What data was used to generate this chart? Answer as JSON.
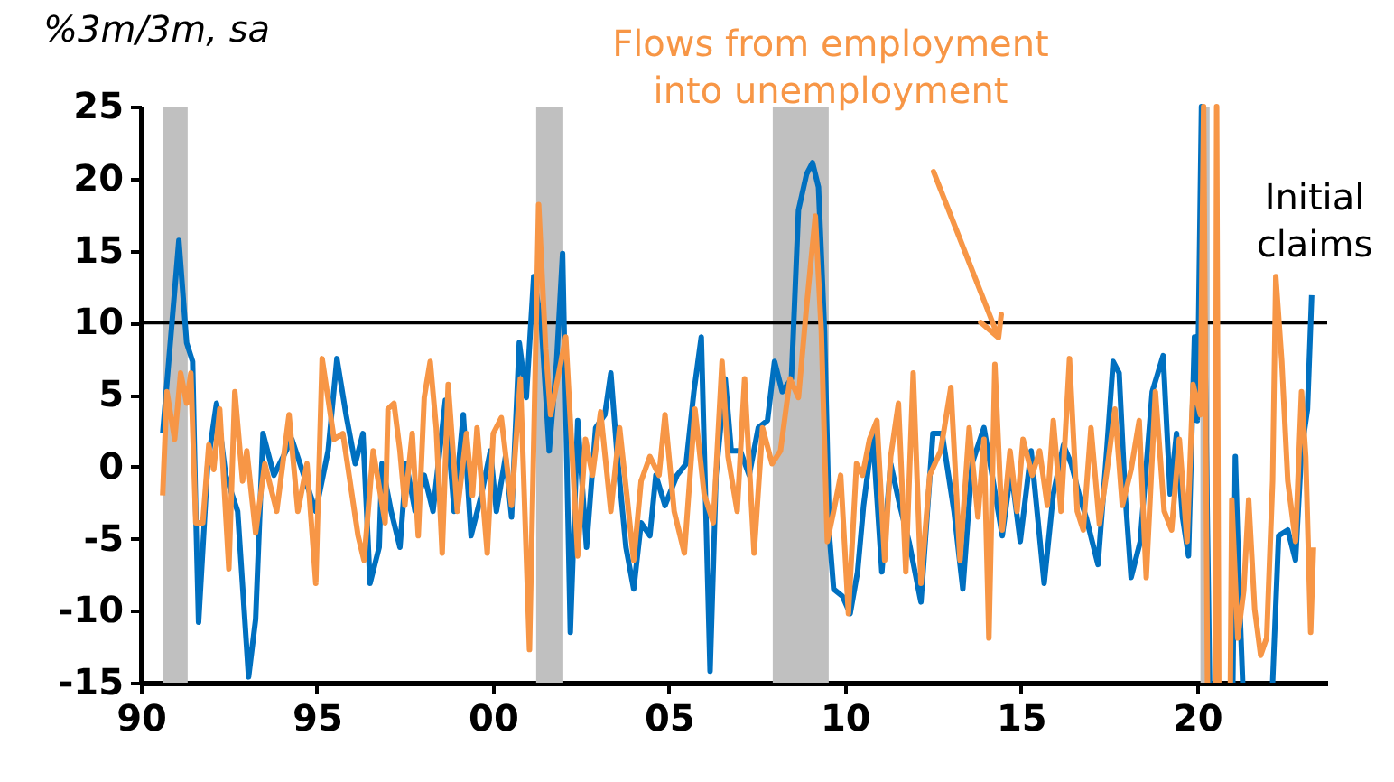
{
  "chart_data": {
    "type": "line",
    "ylabel": "%3m/3m, sa",
    "xlim": [
      1990,
      2023.7
    ],
    "xticks": [
      {
        "value": 1990,
        "label": "90"
      },
      {
        "value": 1995,
        "label": "95"
      },
      {
        "value": 2000,
        "label": "00"
      },
      {
        "value": 2005,
        "label": "05"
      },
      {
        "value": 2010,
        "label": "10"
      },
      {
        "value": 2015,
        "label": "15"
      },
      {
        "value": 2020,
        "label": "20"
      }
    ],
    "ylim": [
      -15,
      25
    ],
    "yticks": [
      -15,
      -10,
      -5,
      0,
      5,
      10,
      15,
      20,
      25
    ],
    "grid": false,
    "legend": false,
    "series": [
      {
        "name": "Initial claims",
        "color": "#0070c0",
        "x": [
          1990.62,
          1991.08,
          1991.3,
          1991.47,
          1991.56,
          1991.64,
          1991.9,
          1992.15,
          1992.41,
          1992.75,
          1993.06,
          1993.26,
          1993.47,
          1993.78,
          1994.29,
          1994.97,
          1995.32,
          1995.57,
          1995.83,
          1996.09,
          1996.31,
          1996.51,
          1996.77,
          1996.85,
          1997.11,
          1997.36,
          1997.54,
          1997.79,
          1998.05,
          1998.3,
          1998.65,
          1998.9,
          1999.16,
          1999.38,
          1999.67,
          1999.93,
          2000.1,
          2000.36,
          2000.53,
          2000.75,
          2000.95,
          2001.16,
          2001.38,
          2001.6,
          2001.81,
          2001.98,
          2002.2,
          2002.41,
          2002.66,
          2002.92,
          2003.18,
          2003.35,
          2003.52,
          2003.78,
          2004.0,
          2004.21,
          2004.46,
          2004.63,
          2004.89,
          2005.23,
          2005.49,
          2005.71,
          2005.92,
          2006.05,
          2006.17,
          2006.34,
          2006.6,
          2006.77,
          2007.03,
          2007.28,
          2007.54,
          2007.8,
          2008.0,
          2008.22,
          2008.48,
          2008.68,
          2008.91,
          2009.08,
          2009.25,
          2009.42,
          2009.56,
          2009.68,
          2009.93,
          2010.15,
          2010.36,
          2010.53,
          2010.79,
          2011.05,
          2011.3,
          2011.56,
          2011.82,
          2012.16,
          2012.5,
          2012.76,
          2013.1,
          2013.35,
          2013.61,
          2013.95,
          2014.21,
          2014.47,
          2014.72,
          2014.98,
          2015.29,
          2015.66,
          2015.92,
          2016.21,
          2016.43,
          2016.69,
          2016.85,
          2017.19,
          2017.45,
          2017.62,
          2017.79,
          2017.96,
          2018.13,
          2018.39,
          2018.73,
          2019.04,
          2019.24,
          2019.42,
          2019.59,
          2019.76,
          2019.93,
          2020.01,
          2020.13,
          2020.36,
          2020.7,
          2021.02,
          2021.09,
          2021.21,
          2021.3,
          2021.7,
          2022.15,
          2022.32,
          2022.58,
          2022.8,
          2022.97,
          2023.14,
          2023.26
        ],
        "values": [
          2.3,
          15.7,
          8.6,
          7.3,
          -3.1,
          -10.8,
          0.2,
          4.4,
          -0.6,
          -3.1,
          -14.6,
          -10.6,
          2.3,
          -0.6,
          1.9,
          -3.1,
          1.1,
          7.5,
          3.6,
          0.2,
          2.3,
          -8.1,
          -5.6,
          0.2,
          -3.1,
          -5.6,
          0.2,
          -3.1,
          -0.6,
          -3.1,
          4.6,
          -3.1,
          3.6,
          -4.8,
          -2.0,
          1.1,
          -3.1,
          0.7,
          -3.5,
          8.6,
          4.8,
          13.2,
          9.8,
          1.1,
          7.3,
          14.8,
          -11.5,
          3.2,
          -5.6,
          2.7,
          3.6,
          6.5,
          1.1,
          -5.6,
          -8.5,
          -3.9,
          -4.8,
          -0.6,
          -2.7,
          -0.6,
          0.2,
          5.2,
          9.0,
          -3.1,
          -14.2,
          -0.6,
          6.1,
          1.1,
          1.1,
          -0.6,
          2.7,
          3.2,
          7.3,
          5.2,
          6.1,
          17.8,
          20.3,
          21.1,
          19.4,
          9.4,
          -4.8,
          -8.5,
          -9.0,
          -10.2,
          -7.3,
          -2.7,
          2.3,
          -7.3,
          0.2,
          -2.7,
          -5.2,
          -9.4,
          2.3,
          2.3,
          -3.1,
          -8.5,
          0.2,
          2.7,
          -1.0,
          -4.8,
          -0.2,
          -5.2,
          1.1,
          -8.1,
          -1.9,
          1.5,
          0.2,
          -2.3,
          -3.5,
          -6.8,
          1.5,
          7.3,
          6.5,
          -1.9,
          -7.7,
          -5.2,
          5.2,
          7.7,
          -1.9,
          2.3,
          -3.5,
          -6.2,
          9.0,
          3.2,
          25,
          -15,
          null,
          -15,
          0.7,
          -9.3,
          -15,
          null,
          -15,
          -4.8,
          -4.4,
          -6.5,
          1.1,
          4.0,
          11.9
        ]
      },
      {
        "name": "Flows from employment into unemployment",
        "color": "#f79646",
        "x": [
          1990.62,
          1990.74,
          1990.96,
          1991.13,
          1991.3,
          1991.42,
          1991.56,
          1991.76,
          1991.93,
          1992.07,
          1992.24,
          1992.5,
          1992.67,
          1992.89,
          1993.01,
          1993.26,
          1993.52,
          1993.86,
          1994.21,
          1994.46,
          1994.72,
          1994.97,
          1995.15,
          1995.49,
          1995.74,
          1996.17,
          1996.34,
          1996.6,
          1996.94,
          1997.02,
          1997.19,
          1997.36,
          1997.5,
          1997.71,
          1997.88,
          1998.05,
          1998.22,
          1998.39,
          1998.56,
          1998.73,
          1998.99,
          1999.25,
          1999.42,
          1999.55,
          1999.84,
          2000.01,
          2000.24,
          2000.53,
          2000.78,
          2001.04,
          2001.3,
          2001.5,
          2001.64,
          2001.84,
          2002.07,
          2002.41,
          2002.63,
          2002.83,
          2003.06,
          2003.35,
          2003.6,
          2003.78,
          2004.0,
          2004.21,
          2004.46,
          2004.72,
          2004.89,
          2005.15,
          2005.44,
          2005.74,
          2006.0,
          2006.26,
          2006.51,
          2006.68,
          2006.94,
          2007.15,
          2007.42,
          2007.66,
          2007.93,
          2008.17,
          2008.44,
          2008.68,
          2008.91,
          2009.16,
          2009.33,
          2009.5,
          2009.68,
          2009.88,
          2010.1,
          2010.33,
          2010.5,
          2010.7,
          2010.91,
          2011.13,
          2011.3,
          2011.52,
          2011.73,
          2011.94,
          2012.16,
          2012.41,
          2012.72,
          2013.01,
          2013.27,
          2013.53,
          2013.78,
          2013.95,
          2014.09,
          2014.26,
          2014.47,
          2014.69,
          2014.89,
          2015.06,
          2015.32,
          2015.53,
          2015.75,
          2015.92,
          2016.14,
          2016.38,
          2016.6,
          2016.77,
          2016.99,
          2017.23,
          2017.45,
          2017.67,
          2017.88,
          2018.13,
          2018.36,
          2018.56,
          2018.82,
          2019.07,
          2019.28,
          2019.5,
          2019.72,
          2019.89,
          2020.1,
          2020.19,
          2020.3,
          2020.42,
          2020.52,
          2020.56,
          2020.62,
          2020.8,
          2020.95,
          2020.99,
          2021.16,
          2021.33,
          2021.47,
          2021.64,
          2021.81,
          2021.98,
          2022.15,
          2022.24,
          2022.41,
          2022.58,
          2022.8,
          2022.97,
          2023.09,
          2023.23,
          2023.31
        ],
        "values": [
          -2.0,
          5.2,
          1.9,
          6.5,
          4.4,
          6.5,
          -3.9,
          -3.9,
          1.5,
          -0.2,
          4.0,
          -7.1,
          5.2,
          -1.0,
          1.1,
          -4.6,
          0.2,
          -3.1,
          3.6,
          -3.1,
          0.2,
          -8.1,
          7.5,
          1.9,
          2.3,
          -4.8,
          -6.5,
          1.1,
          -3.9,
          4.0,
          4.4,
          1.1,
          -2.7,
          2.3,
          -4.8,
          4.8,
          7.3,
          2.7,
          -6.0,
          5.7,
          -3.1,
          2.3,
          -2.0,
          2.7,
          -6.0,
          2.3,
          3.4,
          -2.7,
          6.1,
          -12.7,
          18.2,
          8.2,
          3.6,
          6.1,
          9.0,
          -6.2,
          1.9,
          -0.6,
          3.8,
          -3.1,
          2.7,
          -1.4,
          -6.5,
          -1.0,
          0.7,
          -0.6,
          3.6,
          -3.1,
          -6.0,
          4.0,
          -1.9,
          -3.9,
          7.3,
          0.7,
          -3.1,
          6.1,
          -6.0,
          2.7,
          0.2,
          1.1,
          6.1,
          4.8,
          11.1,
          17.4,
          9.4,
          -5.2,
          -3.1,
          -0.6,
          -10.2,
          0.2,
          -0.6,
          1.9,
          3.2,
          -6.5,
          0.7,
          4.4,
          -7.3,
          6.5,
          -8.1,
          -0.6,
          1.1,
          5.5,
          -6.5,
          2.7,
          -3.5,
          1.9,
          -11.9,
          7.1,
          -4.4,
          1.1,
          -3.1,
          1.9,
          -0.6,
          1.1,
          -2.7,
          3.2,
          -3.1,
          7.5,
          -3.1,
          -4.4,
          2.7,
          -4.0,
          -0.2,
          4.0,
          -2.7,
          -0.2,
          3.2,
          -7.7,
          5.2,
          -3.1,
          -4.4,
          1.9,
          -5.2,
          5.7,
          3.6,
          25,
          -15,
          null,
          -15,
          25,
          -15,
          null,
          -15,
          -2.3,
          -11.9,
          -8.6,
          -2.3,
          -9.9,
          -13.1,
          -11.9,
          -1.0,
          13.2,
          7.3,
          -1.0,
          -5.2,
          5.2,
          0.7,
          -11.5,
          -5.6
        ]
      }
    ],
    "bands": [
      {
        "axis": "x",
        "from": 1990.62,
        "to": 1991.33,
        "color": "#c0c0c0"
      },
      {
        "axis": "x",
        "from": 2001.23,
        "to": 2002.0,
        "color": "#c0c0c0"
      },
      {
        "axis": "x",
        "from": 2007.95,
        "to": 2009.54,
        "color": "#c0c0c0"
      },
      {
        "axis": "x",
        "from": 2020.1,
        "to": 2020.36,
        "color": "#c0c0c0"
      }
    ],
    "ref_lines": [
      {
        "axis": "y",
        "value": 10,
        "color": "#000000"
      }
    ]
  }
}
